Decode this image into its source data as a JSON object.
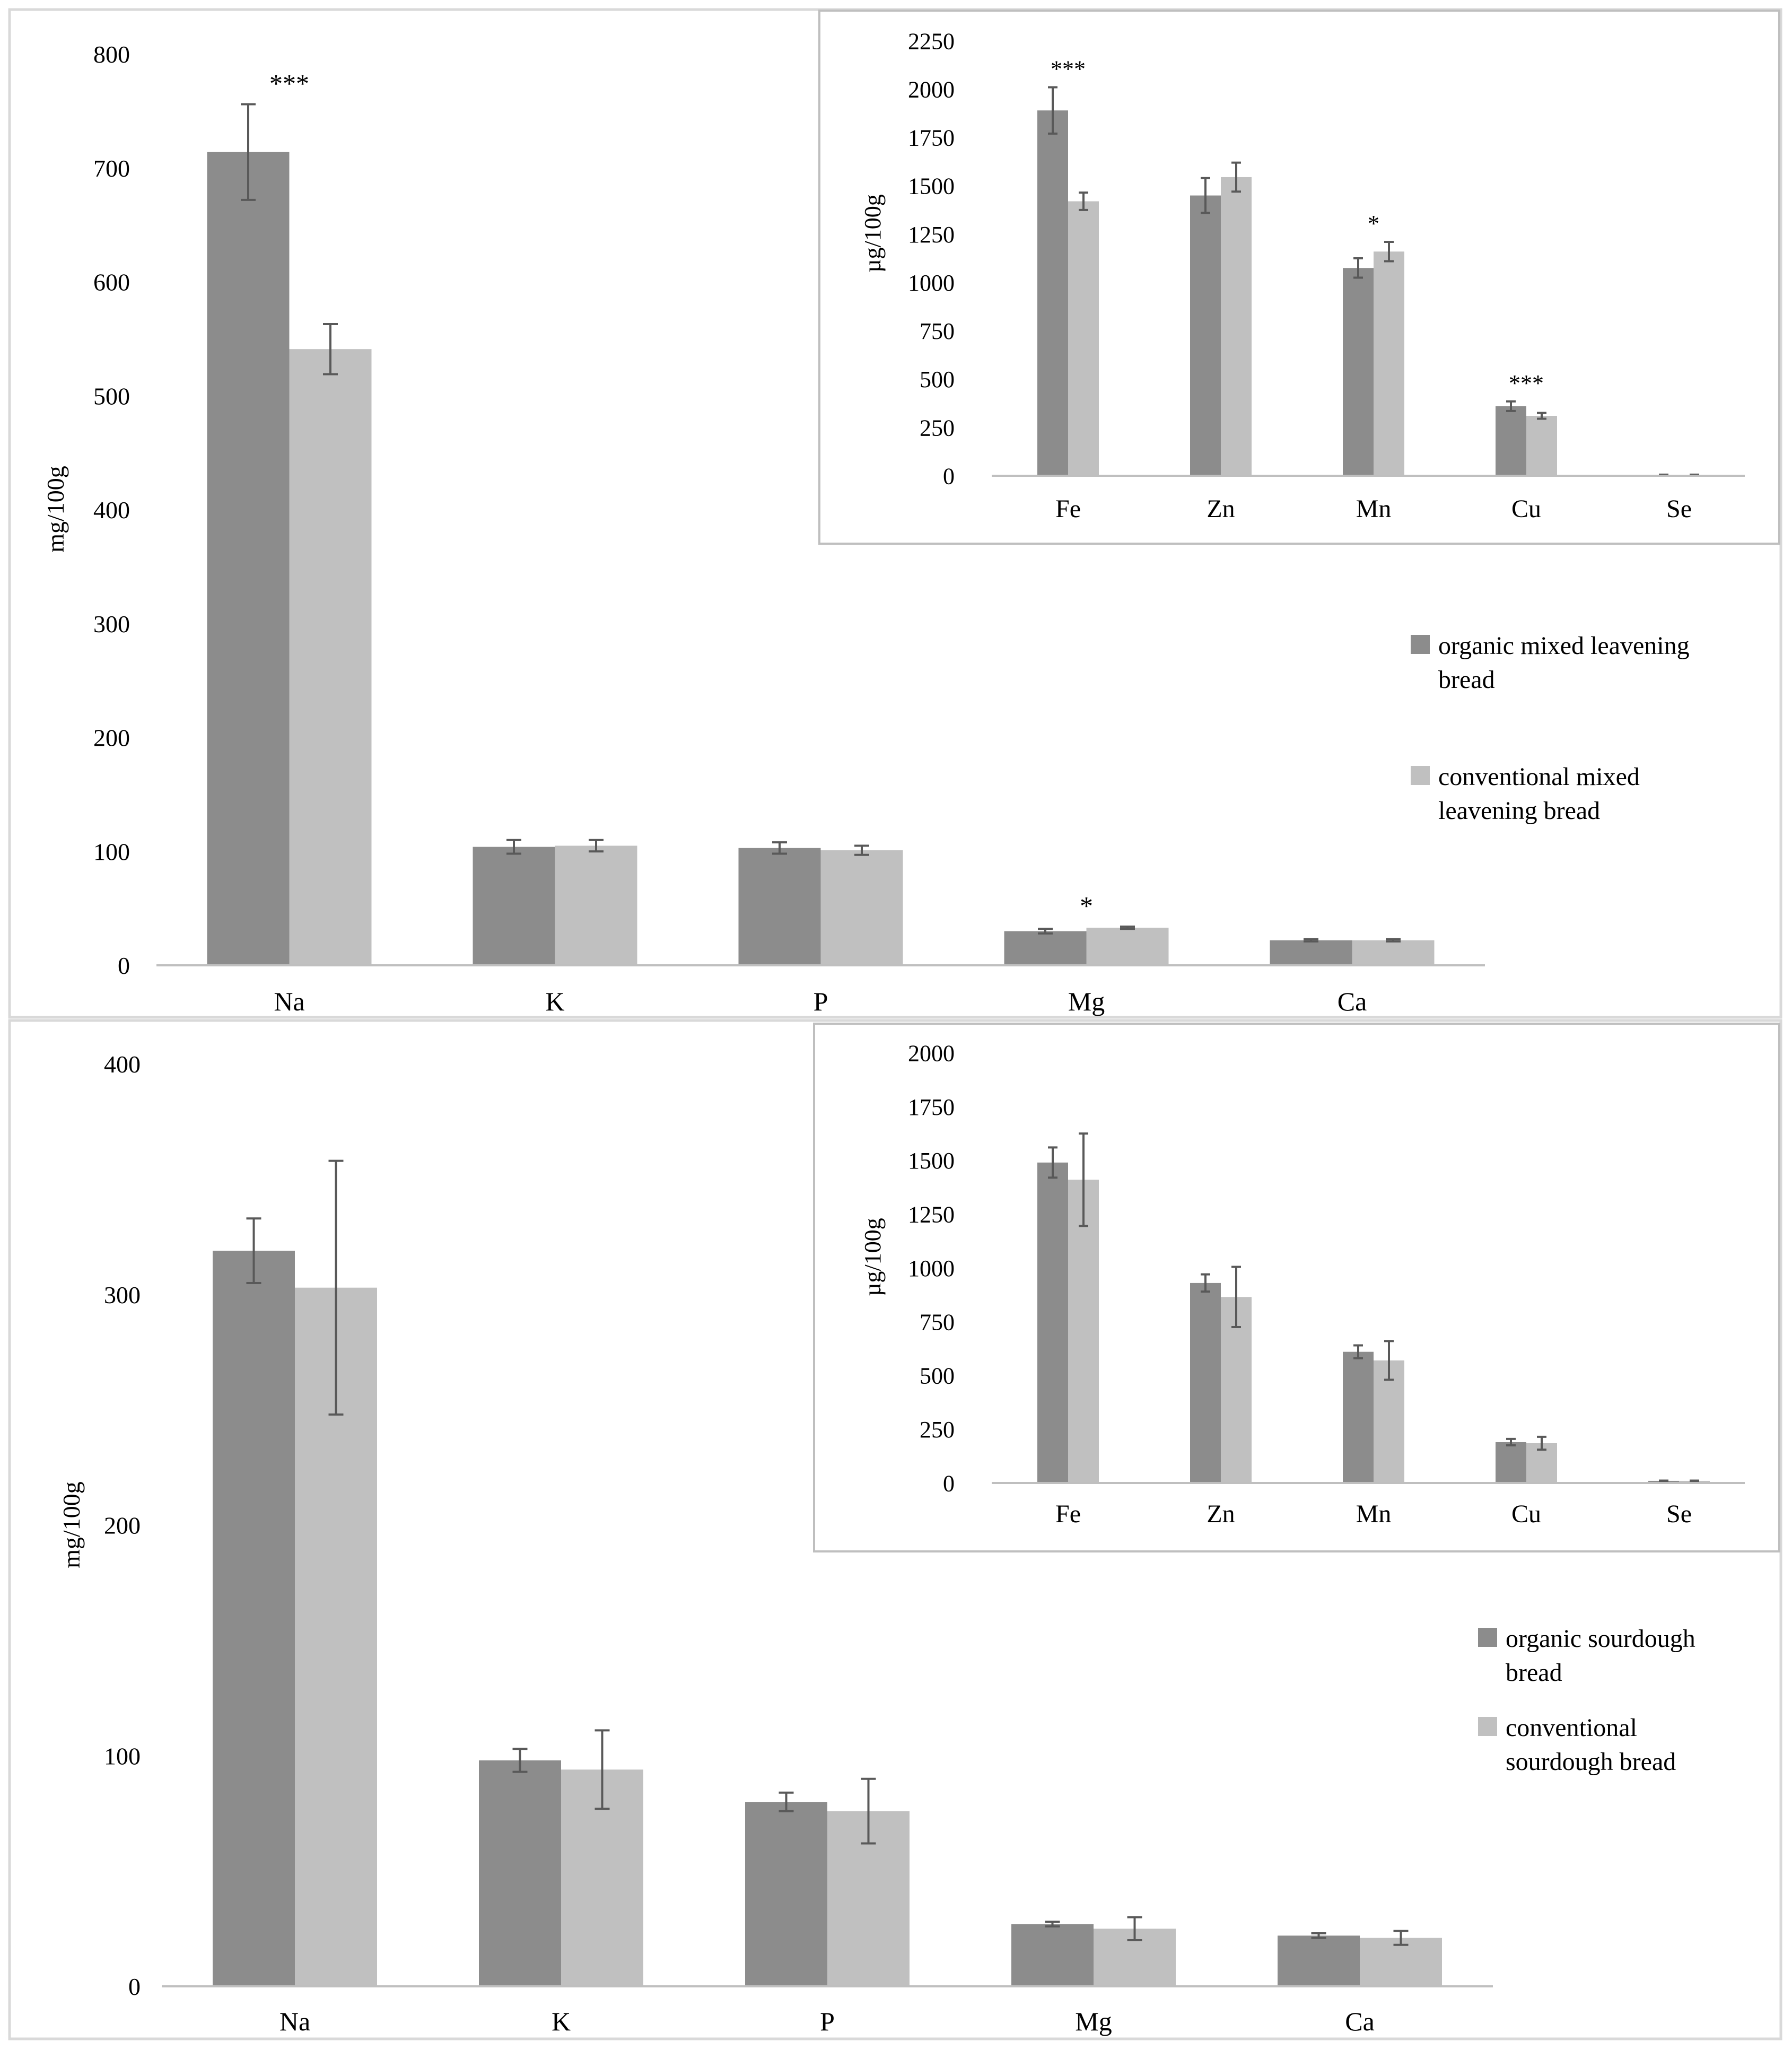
{
  "colors": {
    "organic": "#8c8c8c",
    "conventional": "#c0c0c0",
    "axis": "#bfbfbf",
    "error": "#595959",
    "frame": "#d9d9d9"
  },
  "chart_data": [
    {
      "id": "top-main",
      "type": "bar",
      "title": "",
      "xlabel": "",
      "ylabel": "mg/100g",
      "categories": [
        "Na",
        "K",
        "P",
        "Mg",
        "Ca"
      ],
      "ylim": [
        0,
        800
      ],
      "yticks": [
        0,
        100,
        200,
        300,
        400,
        500,
        600,
        700,
        800
      ],
      "series": [
        {
          "name": "organic mixed leavening bread",
          "values": [
            714,
            104,
            103,
            30,
            22
          ],
          "errors": [
            42,
            6,
            5,
            2,
            1
          ]
        },
        {
          "name": "conventional mixed leavening bread",
          "values": [
            541,
            105,
            101,
            33,
            22
          ],
          "errors": [
            22,
            5,
            4,
            1,
            1
          ]
        }
      ],
      "significance": [
        "***",
        "",
        "",
        "*",
        ""
      ],
      "legend": {
        "placement": "right",
        "labels": [
          [
            "organic mixed leavening",
            "bread"
          ],
          [
            "conventional mixed",
            "leavening bread"
          ]
        ]
      }
    },
    {
      "id": "top-inset",
      "type": "bar",
      "title": "",
      "xlabel": "",
      "ylabel": "µg/100g",
      "categories": [
        "Fe",
        "Zn",
        "Mn",
        "Cu",
        "Se"
      ],
      "ylim": [
        0,
        2250
      ],
      "yticks": [
        0,
        250,
        500,
        750,
        1000,
        1250,
        1500,
        1750,
        2000,
        2250
      ],
      "series": [
        {
          "name": "organic mixed leavening bread",
          "values": [
            1890,
            1450,
            1075,
            360,
            5
          ],
          "errors": [
            120,
            90,
            50,
            25,
            1
          ]
        },
        {
          "name": "conventional mixed leavening bread",
          "values": [
            1420,
            1545,
            1160,
            310,
            5
          ],
          "errors": [
            45,
            75,
            50,
            15,
            1
          ]
        }
      ],
      "significance": [
        "***",
        "",
        "*",
        "***",
        ""
      ]
    },
    {
      "id": "bottom-main",
      "type": "bar",
      "title": "",
      "xlabel": "",
      "ylabel": "mg/100g",
      "categories": [
        "Na",
        "K",
        "P",
        "Mg",
        "Ca"
      ],
      "ylim": [
        0,
        400
      ],
      "yticks": [
        0,
        100,
        200,
        300,
        400
      ],
      "series": [
        {
          "name": "organic sourdough bread",
          "values": [
            319,
            98,
            80,
            27,
            22
          ],
          "errors": [
            14,
            5,
            4,
            1,
            1
          ]
        },
        {
          "name": "conventional sourdough bread",
          "values": [
            303,
            94,
            76,
            25,
            21
          ],
          "errors": [
            55,
            17,
            14,
            5,
            3
          ]
        }
      ],
      "significance": [
        "",
        "",
        "",
        "",
        ""
      ],
      "legend": {
        "placement": "right",
        "labels": [
          [
            "organic sourdough",
            "bread"
          ],
          [
            "conventional",
            "sourdough bread"
          ]
        ]
      }
    },
    {
      "id": "bottom-inset",
      "type": "bar",
      "title": "",
      "xlabel": "",
      "ylabel": "µg/100g",
      "categories": [
        "Fe",
        "Zn",
        "Mn",
        "Cu",
        "Se"
      ],
      "ylim": [
        0,
        2000
      ],
      "yticks": [
        0,
        250,
        500,
        750,
        1000,
        1250,
        1500,
        1750,
        2000
      ],
      "series": [
        {
          "name": "organic sourdough bread",
          "values": [
            1490,
            930,
            610,
            190,
            10
          ],
          "errors": [
            70,
            40,
            30,
            15,
            1
          ]
        },
        {
          "name": "conventional sourdough bread",
          "values": [
            1410,
            865,
            570,
            185,
            10
          ],
          "errors": [
            215,
            140,
            90,
            30,
            1
          ]
        }
      ],
      "significance": [
        "",
        "",
        "",
        "",
        ""
      ]
    }
  ]
}
